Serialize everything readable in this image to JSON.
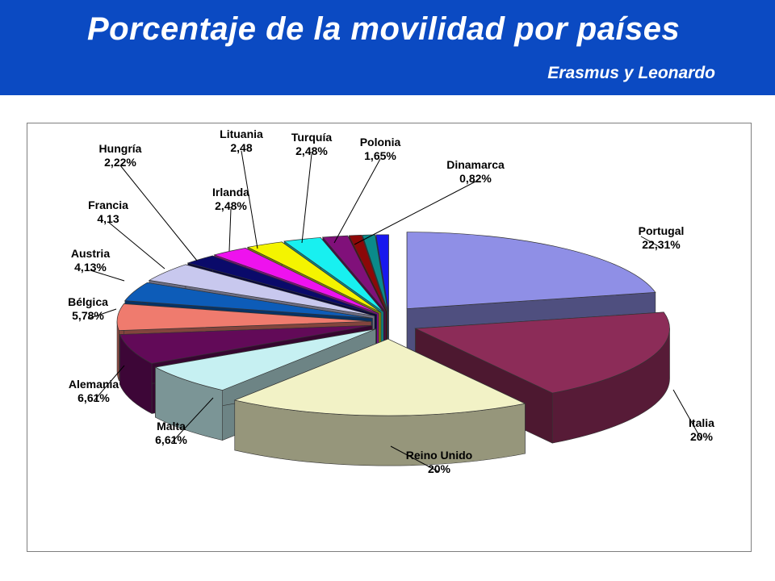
{
  "header": {
    "title": "Porcentaje de la movilidad por países",
    "subtitle": "Erasmus y Leonardo"
  },
  "chart_data": {
    "type": "pie",
    "title": "",
    "slices": [
      {
        "name": "Portugal",
        "value": 22.31,
        "value_label": "22,31%",
        "color": "#8f8fe6"
      },
      {
        "name": "Italia",
        "value": 20,
        "value_label": "20%",
        "color": "#8c2c58"
      },
      {
        "name": "Reino Unido",
        "value": 20,
        "value_label": "20%",
        "color": "#f2f2c6"
      },
      {
        "name": "Malta",
        "value": 6.61,
        "value_label": "6,61%",
        "color": "#c6f0f2"
      },
      {
        "name": "Alemania",
        "value": 6.61,
        "value_label": "6,61%",
        "color": "#620a58"
      },
      {
        "name": "Bélgica",
        "value": 5.78,
        "value_label": "5,78%",
        "color": "#ef7b6e"
      },
      {
        "name": "Austria",
        "value": 4.13,
        "value_label": "4,13%",
        "color": "#0d5cb8"
      },
      {
        "name": "Francia",
        "value": 4.13,
        "value_label": "4,13",
        "color": "#c8c8ee"
      },
      {
        "name": "Hungría",
        "value": 2.22,
        "value_label": "2,22%",
        "color": "#0a0a6a"
      },
      {
        "name": "Irlanda",
        "value": 2.48,
        "value_label": "2,48%",
        "color": "#ee12ee"
      },
      {
        "name": "Lituania",
        "value": 2.48,
        "value_label": "2,48",
        "color": "#f4f400"
      },
      {
        "name": "Turquía",
        "value": 2.48,
        "value_label": "2,48%",
        "color": "#18f0f0"
      },
      {
        "name": "Polonia",
        "value": 1.65,
        "value_label": "1,65%",
        "color": "#80107a"
      },
      {
        "name": "Dinamarca",
        "value": 0.82,
        "value_label": "0,82%",
        "color": "#8c0808"
      },
      {
        "name": "",
        "value": 0.82,
        "value_label": "",
        "color": "#0a8a8a"
      },
      {
        "name": "",
        "value": 0.82,
        "value_label": "",
        "color": "#1818ee"
      }
    ],
    "style": "3d-exploded"
  }
}
